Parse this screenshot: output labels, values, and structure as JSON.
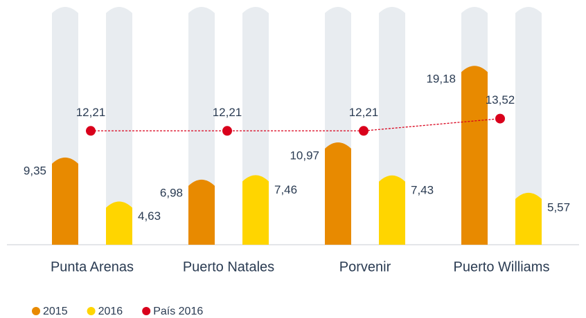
{
  "chart_data": {
    "type": "bar",
    "categories": [
      "Punta Arenas",
      "Puerto Natales",
      "Porvenir",
      "Puerto Williams"
    ],
    "series": [
      {
        "name": "2015",
        "color": "#e88a00",
        "values": [
          9.35,
          6.98,
          10.97,
          19.18
        ],
        "value_labels": [
          "9,35",
          "6,98",
          "10,97",
          "19,18"
        ]
      },
      {
        "name": "2016",
        "color": "#ffd500",
        "values": [
          4.63,
          7.46,
          7.43,
          5.57
        ],
        "value_labels": [
          "4,63",
          "7,46",
          "7,43",
          "5,57"
        ]
      },
      {
        "name": "País 2016",
        "color": "#d9001b",
        "type": "line",
        "values": [
          12.21,
          12.21,
          12.21,
          13.52
        ],
        "value_labels": [
          "12,21",
          "12,21",
          "12,21",
          "13,52"
        ]
      }
    ],
    "ylim": [
      0,
      25.5
    ],
    "legend": "bottom-left"
  }
}
